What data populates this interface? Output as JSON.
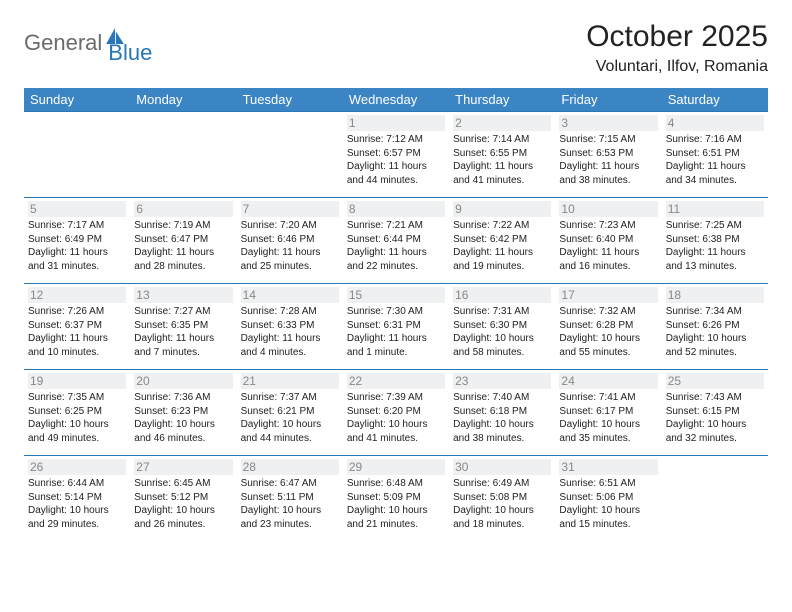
{
  "brand": {
    "name_gray": "General",
    "name_blue": "Blue"
  },
  "header": {
    "title": "October 2025",
    "location": "Voluntari, Ilfov, Romania"
  },
  "colors": {
    "header_bg": "#3b85c4",
    "header_text": "#ffffff",
    "rule": "#2976b9",
    "daynum_bg": "#eef0f1",
    "daynum_text": "#888888",
    "logo_gray": "#6b6b6b",
    "logo_blue": "#2976b9",
    "body_text": "#222222",
    "page_bg": "#ffffff"
  },
  "weekdays": [
    "Sunday",
    "Monday",
    "Tuesday",
    "Wednesday",
    "Thursday",
    "Friday",
    "Saturday"
  ],
  "weeks": [
    [
      null,
      null,
      null,
      {
        "num": "1",
        "sunrise": "7:12 AM",
        "sunset": "6:57 PM",
        "daylight": "11 hours and 44 minutes."
      },
      {
        "num": "2",
        "sunrise": "7:14 AM",
        "sunset": "6:55 PM",
        "daylight": "11 hours and 41 minutes."
      },
      {
        "num": "3",
        "sunrise": "7:15 AM",
        "sunset": "6:53 PM",
        "daylight": "11 hours and 38 minutes."
      },
      {
        "num": "4",
        "sunrise": "7:16 AM",
        "sunset": "6:51 PM",
        "daylight": "11 hours and 34 minutes."
      }
    ],
    [
      {
        "num": "5",
        "sunrise": "7:17 AM",
        "sunset": "6:49 PM",
        "daylight": "11 hours and 31 minutes."
      },
      {
        "num": "6",
        "sunrise": "7:19 AM",
        "sunset": "6:47 PM",
        "daylight": "11 hours and 28 minutes."
      },
      {
        "num": "7",
        "sunrise": "7:20 AM",
        "sunset": "6:46 PM",
        "daylight": "11 hours and 25 minutes."
      },
      {
        "num": "8",
        "sunrise": "7:21 AM",
        "sunset": "6:44 PM",
        "daylight": "11 hours and 22 minutes."
      },
      {
        "num": "9",
        "sunrise": "7:22 AM",
        "sunset": "6:42 PM",
        "daylight": "11 hours and 19 minutes."
      },
      {
        "num": "10",
        "sunrise": "7:23 AM",
        "sunset": "6:40 PM",
        "daylight": "11 hours and 16 minutes."
      },
      {
        "num": "11",
        "sunrise": "7:25 AM",
        "sunset": "6:38 PM",
        "daylight": "11 hours and 13 minutes."
      }
    ],
    [
      {
        "num": "12",
        "sunrise": "7:26 AM",
        "sunset": "6:37 PM",
        "daylight": "11 hours and 10 minutes."
      },
      {
        "num": "13",
        "sunrise": "7:27 AM",
        "sunset": "6:35 PM",
        "daylight": "11 hours and 7 minutes."
      },
      {
        "num": "14",
        "sunrise": "7:28 AM",
        "sunset": "6:33 PM",
        "daylight": "11 hours and 4 minutes."
      },
      {
        "num": "15",
        "sunrise": "7:30 AM",
        "sunset": "6:31 PM",
        "daylight": "11 hours and 1 minute."
      },
      {
        "num": "16",
        "sunrise": "7:31 AM",
        "sunset": "6:30 PM",
        "daylight": "10 hours and 58 minutes."
      },
      {
        "num": "17",
        "sunrise": "7:32 AM",
        "sunset": "6:28 PM",
        "daylight": "10 hours and 55 minutes."
      },
      {
        "num": "18",
        "sunrise": "7:34 AM",
        "sunset": "6:26 PM",
        "daylight": "10 hours and 52 minutes."
      }
    ],
    [
      {
        "num": "19",
        "sunrise": "7:35 AM",
        "sunset": "6:25 PM",
        "daylight": "10 hours and 49 minutes."
      },
      {
        "num": "20",
        "sunrise": "7:36 AM",
        "sunset": "6:23 PM",
        "daylight": "10 hours and 46 minutes."
      },
      {
        "num": "21",
        "sunrise": "7:37 AM",
        "sunset": "6:21 PM",
        "daylight": "10 hours and 44 minutes."
      },
      {
        "num": "22",
        "sunrise": "7:39 AM",
        "sunset": "6:20 PM",
        "daylight": "10 hours and 41 minutes."
      },
      {
        "num": "23",
        "sunrise": "7:40 AM",
        "sunset": "6:18 PM",
        "daylight": "10 hours and 38 minutes."
      },
      {
        "num": "24",
        "sunrise": "7:41 AM",
        "sunset": "6:17 PM",
        "daylight": "10 hours and 35 minutes."
      },
      {
        "num": "25",
        "sunrise": "7:43 AM",
        "sunset": "6:15 PM",
        "daylight": "10 hours and 32 minutes."
      }
    ],
    [
      {
        "num": "26",
        "sunrise": "6:44 AM",
        "sunset": "5:14 PM",
        "daylight": "10 hours and 29 minutes."
      },
      {
        "num": "27",
        "sunrise": "6:45 AM",
        "sunset": "5:12 PM",
        "daylight": "10 hours and 26 minutes."
      },
      {
        "num": "28",
        "sunrise": "6:47 AM",
        "sunset": "5:11 PM",
        "daylight": "10 hours and 23 minutes."
      },
      {
        "num": "29",
        "sunrise": "6:48 AM",
        "sunset": "5:09 PM",
        "daylight": "10 hours and 21 minutes."
      },
      {
        "num": "30",
        "sunrise": "6:49 AM",
        "sunset": "5:08 PM",
        "daylight": "10 hours and 18 minutes."
      },
      {
        "num": "31",
        "sunrise": "6:51 AM",
        "sunset": "5:06 PM",
        "daylight": "10 hours and 15 minutes."
      },
      null
    ]
  ],
  "labels": {
    "sunrise": "Sunrise:",
    "sunset": "Sunset:",
    "daylight": "Daylight:"
  }
}
